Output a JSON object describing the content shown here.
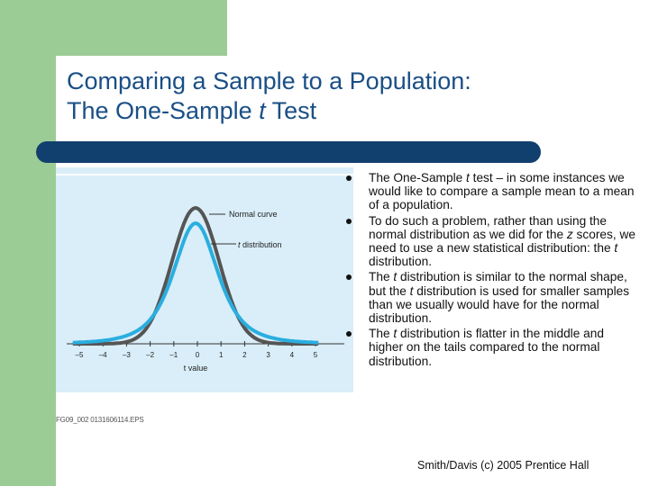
{
  "slide": {
    "title_line1": "Comparing a Sample to a Population:",
    "title_line2_prefix": "The One-Sample ",
    "title_line2_italic": "t",
    "title_line2_suffix": " Test",
    "footer": "Smith/Davis (c) 2005 Prentice Hall",
    "figure_id": "FG09_002  0131606114.EPS"
  },
  "figure": {
    "normal_label": "Normal curve",
    "t_label_italic": "t",
    "t_label_rest": " distribution",
    "xlabel": "t value",
    "ticks": [
      "–5",
      "–4",
      "–3",
      "–2",
      "–1",
      "0",
      "1",
      "2",
      "3",
      "4",
      "5"
    ]
  },
  "bullets": [
    [
      {
        "t": "The One-Sample "
      },
      {
        "t": "t",
        "i": true
      },
      {
        "t": " test – in some instances we would like to compare a sample mean to a mean of a population."
      }
    ],
    [
      {
        "t": "To do such a problem, rather than using the normal distribution as we did for the "
      },
      {
        "t": "z",
        "i": true
      },
      {
        "t": " scores, we need to use a new statistical distribution: the "
      },
      {
        "t": "t",
        "i": true
      },
      {
        "t": " distribution."
      }
    ],
    [
      {
        "t": "The "
      },
      {
        "t": "t",
        "i": true
      },
      {
        "t": " distribution is similar to the normal shape, but the "
      },
      {
        "t": "t",
        "i": true
      },
      {
        "t": " distribution is used for smaller samples than we usually would have for the normal distribution."
      }
    ],
    [
      {
        "t": "The "
      },
      {
        "t": "t",
        "i": true
      },
      {
        "t": " distribution is flatter in the middle and higher on the tails compared to the normal distribution."
      }
    ]
  ],
  "colors": {
    "title": "#1a4f86",
    "rule": "#12406e",
    "green": "#9ccc96",
    "normal_curve": "#555555",
    "t_curve": "#2aaee0"
  }
}
